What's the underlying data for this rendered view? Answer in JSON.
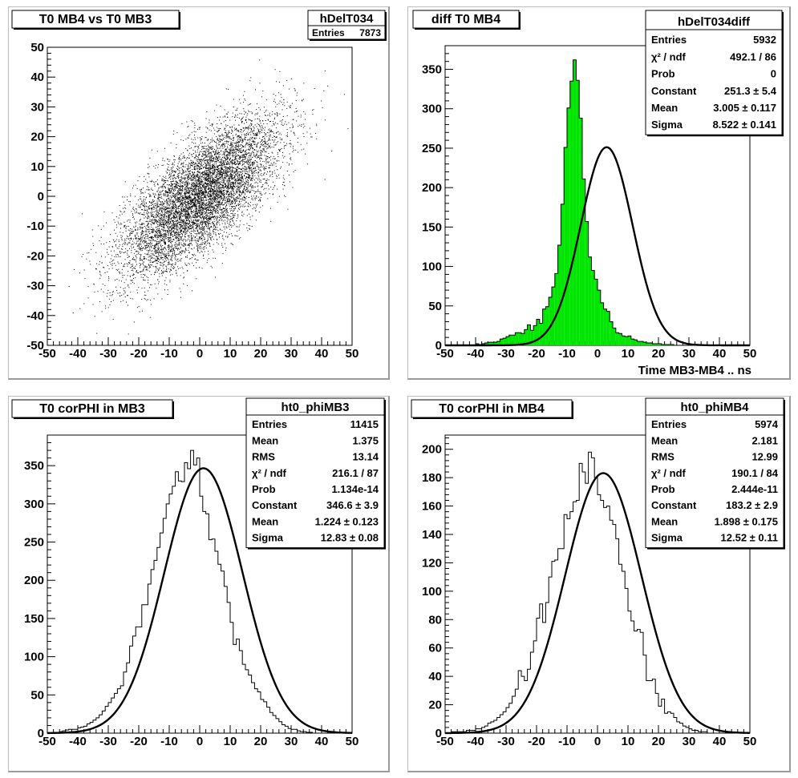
{
  "canvas": {
    "background": "#ffffff",
    "frame": "#bdbdbd"
  },
  "chart_data": [
    {
      "type": "scatter",
      "title": "T0 MB4 vs T0 MB3",
      "xlim": [
        -50,
        50
      ],
      "ylim": [
        -50,
        50
      ],
      "xticks": [
        -50,
        -40,
        -30,
        -20,
        -10,
        0,
        10,
        20,
        30,
        40,
        50
      ],
      "yticks": [
        -50,
        -40,
        -30,
        -20,
        -10,
        0,
        10,
        20,
        30,
        40,
        50
      ],
      "xlabel": "",
      "ylabel": "",
      "stats": {
        "name": "hDelT034",
        "rows": [
          {
            "label": "Entries",
            "value": "7873"
          }
        ]
      },
      "distribution": {
        "n": 7873,
        "mean": [
          0,
          0
        ],
        "sigma": [
          13,
          13
        ],
        "correlation": 0.72
      },
      "marker_color": "#000000"
    },
    {
      "type": "bar",
      "title": "diff T0 MB4",
      "xlabel": "Time MB3-MB4  ..  ns",
      "ylabel": "",
      "xlim": [
        -50,
        50
      ],
      "ylim": [
        0,
        380
      ],
      "xticks": [
        -50,
        -40,
        -30,
        -20,
        -10,
        0,
        10,
        20,
        30,
        40,
        50
      ],
      "yticks": [
        0,
        50,
        100,
        150,
        200,
        250,
        300,
        350
      ],
      "bin_width": 1,
      "fill_color": "#00e600",
      "stats": {
        "name": "hDelT034diff",
        "rows": [
          {
            "label": "Entries",
            "value": "5932"
          },
          {
            "label": "χ² / ndf",
            "value": "492.1 / 86"
          },
          {
            "label": "Prob",
            "value": "0"
          },
          {
            "label": "Constant",
            "value": "251.3 ± 5.4"
          },
          {
            "label": "Mean",
            "value": "3.005 ± 0.117"
          },
          {
            "label": "Sigma",
            "value": "8.522 ± 0.141"
          }
        ]
      },
      "fit": {
        "constant": 251.3,
        "mean": 3.005,
        "sigma": 8.522
      },
      "bins": {
        "start": -50,
        "end": 50,
        "values": [
          0,
          0,
          0,
          0,
          0,
          0,
          0,
          0,
          0,
          0,
          2,
          1,
          2,
          3,
          4,
          4,
          4,
          5,
          8,
          9,
          11,
          13,
          13,
          16,
          16,
          15,
          20,
          26,
          19,
          25,
          33,
          28,
          46,
          49,
          61,
          74,
          91,
          127,
          179,
          251,
          301,
          335,
          362,
          336,
          288,
          211,
          157,
          112,
          95,
          84,
          70,
          54,
          46,
          43,
          30,
          22,
          16,
          15,
          12,
          11,
          12,
          8,
          7,
          5,
          5,
          4,
          3,
          3,
          2,
          2,
          2,
          1,
          1,
          1,
          1,
          0,
          0,
          0,
          0,
          0,
          0,
          0,
          0,
          0,
          0,
          0,
          0,
          0,
          0,
          0,
          0,
          0,
          0,
          0,
          0,
          0,
          0,
          0,
          0,
          0
        ]
      }
    },
    {
      "type": "bar",
      "title": "T0 corPHI in MB3",
      "xlabel": "",
      "ylabel": "",
      "xlim": [
        -50,
        50
      ],
      "ylim": [
        0,
        390
      ],
      "xticks": [
        -50,
        -40,
        -30,
        -20,
        -10,
        0,
        10,
        20,
        30,
        40,
        50
      ],
      "yticks": [
        0,
        50,
        100,
        150,
        200,
        250,
        300,
        350
      ],
      "bin_width": 1,
      "fill_color": "none",
      "stats": {
        "name": "ht0_phiMB3",
        "rows": [
          {
            "label": "Entries",
            "value": "11415"
          },
          {
            "label": "Mean",
            "value": "1.375"
          },
          {
            "label": "RMS",
            "value": "13.14"
          },
          {
            "label": "χ² / ndf",
            "value": "216.1 / 87"
          },
          {
            "label": "Prob",
            "value": "1.134e-14"
          },
          {
            "label": "Constant",
            "value": "346.6 ± 3.9"
          },
          {
            "label": "Mean",
            "value": "1.224 ± 0.123"
          },
          {
            "label": "Sigma",
            "value": "12.83 ± 0.08"
          }
        ]
      },
      "fit": {
        "constant": 346.6,
        "mean": 1.224,
        "sigma": 12.83
      },
      "bins": {
        "start": -50,
        "end": 50,
        "values": [
          0,
          0,
          1,
          1,
          2,
          3,
          4,
          5,
          5,
          5,
          7,
          8,
          9,
          12,
          14,
          17,
          20,
          24,
          29,
          35,
          40,
          46,
          52,
          58,
          62,
          80,
          92,
          114,
          127,
          139,
          139,
          168,
          168,
          195,
          214,
          226,
          243,
          262,
          281,
          300,
          313,
          323,
          342,
          330,
          329,
          354,
          346,
          370,
          351,
          360,
          310,
          290,
          287,
          253,
          254,
          238,
          221,
          212,
          192,
          171,
          145,
          116,
          123,
          108,
          90,
          83,
          76,
          66,
          58,
          54,
          44,
          41,
          34,
          27,
          23,
          19,
          15,
          11,
          9,
          6,
          5,
          5,
          3,
          2,
          2,
          1,
          1,
          0,
          0,
          0,
          0,
          0,
          0,
          0,
          0,
          0,
          0,
          0,
          0,
          0
        ]
      }
    },
    {
      "type": "bar",
      "title": "T0 corPHI in MB4",
      "xlabel": "",
      "ylabel": "",
      "xlim": [
        -50,
        50
      ],
      "ylim": [
        0,
        210
      ],
      "xticks": [
        -50,
        -40,
        -30,
        -20,
        -10,
        0,
        10,
        20,
        30,
        40,
        50
      ],
      "yticks": [
        0,
        20,
        40,
        60,
        80,
        100,
        120,
        140,
        160,
        180,
        200
      ],
      "bin_width": 1,
      "fill_color": "none",
      "stats": {
        "name": "ht0_phiMB4",
        "rows": [
          {
            "label": "Entries",
            "value": "5974"
          },
          {
            "label": "Mean",
            "value": "2.181"
          },
          {
            "label": "RMS",
            "value": "12.99"
          },
          {
            "label": "χ² / ndf",
            "value": "190.1 / 84"
          },
          {
            "label": "Prob",
            "value": "2.444e-11"
          },
          {
            "label": "Constant",
            "value": "183.2 ± 2.9"
          },
          {
            "label": "Mean",
            "value": "1.898 ± 0.175"
          },
          {
            "label": "Sigma",
            "value": "12.52 ± 0.11"
          }
        ]
      },
      "fit": {
        "constant": 183.2,
        "mean": 1.898,
        "sigma": 12.52
      },
      "bins": {
        "start": -50,
        "end": 50,
        "values": [
          0,
          0,
          1,
          1,
          1,
          1,
          1,
          2,
          2,
          2,
          3,
          3,
          4,
          5,
          7,
          8,
          9,
          11,
          13,
          15,
          18,
          21,
          26,
          31,
          44,
          40,
          37,
          45,
          57,
          65,
          81,
          91,
          78,
          92,
          110,
          121,
          122,
          130,
          130,
          154,
          151,
          156,
          163,
          164,
          190,
          184,
          176,
          198,
          194,
          180,
          168,
          164,
          159,
          160,
          150,
          147,
          137,
          119,
          114,
          102,
          86,
          79,
          72,
          73,
          71,
          55,
          37,
          37,
          38,
          28,
          19,
          24,
          14,
          15,
          14,
          11,
          8,
          7,
          5,
          4,
          3,
          2,
          2,
          1,
          1,
          1,
          0,
          0,
          0,
          0,
          0,
          0,
          0,
          0,
          0,
          0,
          0,
          0,
          0,
          0
        ]
      }
    }
  ]
}
